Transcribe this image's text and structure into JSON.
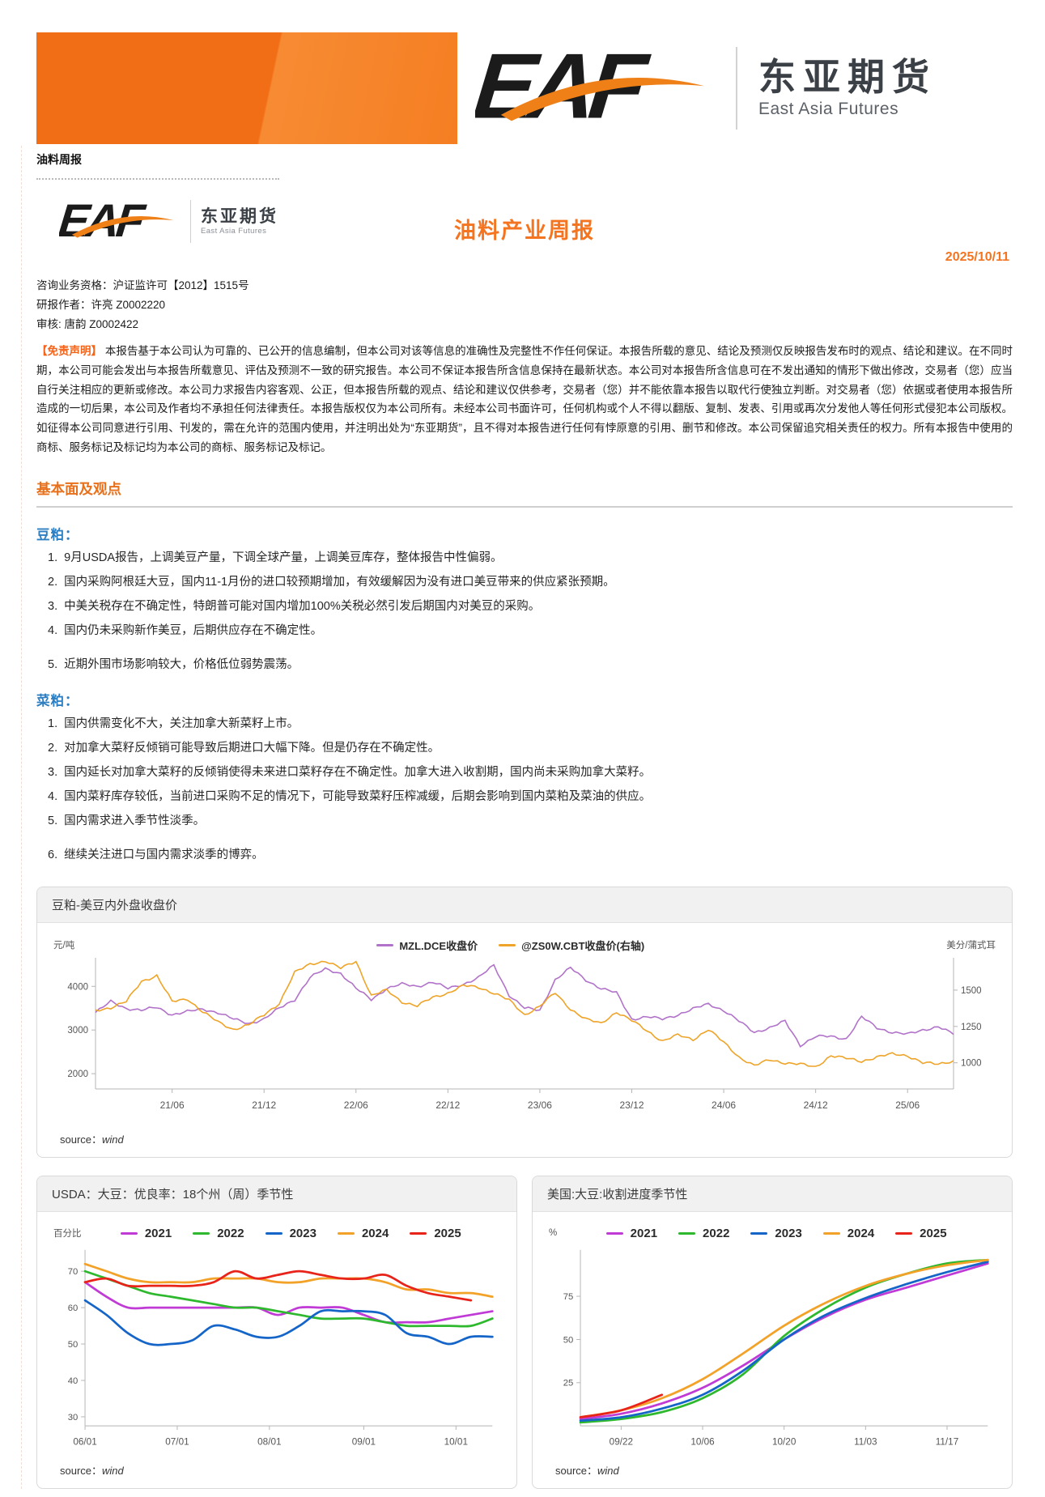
{
  "theme": {
    "brand_orange": "#F4741F",
    "heading_blue": "#2E7FC1",
    "banner_orange": "#F26E16"
  },
  "page": {
    "doc_label": "油料周报",
    "brand": {
      "logo_text": "EAF",
      "cn": "东亚期货",
      "en": "East Asia Futures"
    }
  },
  "report": {
    "title": "油料产业周报",
    "date": "2025/10/11",
    "qualification": "咨询业务资格：沪证监许可【2012】1515号",
    "author": "研报作者：许亮 Z0002220",
    "reviewer": "审核: 唐韵 Z0002422",
    "disclaimer_label": "【免责声明】",
    "disclaimer_text": "本报告基于本公司认为可靠的、已公开的信息编制，但本公司对该等信息的准确性及完整性不作任何保证。本报告所载的意见、结论及预测仅反映报告发布时的观点、结论和建议。在不同时期，本公司可能会发出与本报告所载意见、评估及预测不一致的研究报告。本公司不保证本报告所含信息保持在最新状态。本公司对本报告所含信息可在不发出通知的情形下做出修改，交易者（您）应当自行关注相应的更新或修改。本公司力求报告内容客观、公正，但本报告所载的观点、结论和建议仅供参考，交易者（您）并不能依靠本报告以取代行使独立判断。对交易者（您）依据或者使用本报告所造成的一切后果，本公司及作者均不承担任何法律责任。本报告版权仅为本公司所有。未经本公司书面许可，任何机构或个人不得以翻版、复制、发表、引用或再次分发他人等任何形式侵犯本公司版权。如征得本公司同意进行引用、刊发的，需在允许的范围内使用，并注明出处为“东亚期货”，且不得对本报告进行任何有悖原意的引用、删节和修改。本公司保留追究相关责任的权力。所有本报告中使用的商标、服务标记及标记均为本公司的商标、服务标记及标记。"
  },
  "sections": {
    "heading": "基本面及观点",
    "soybean_meal": {
      "title": "豆粕：",
      "items": [
        "9月USDA报告，上调美豆产量，下调全球产量，上调美豆库存，整体报告中性偏弱。",
        "国内采购阿根廷大豆，国内11-1月份的进口较预期增加，有效缓解因为没有进口美豆带来的供应紧张预期。",
        "中美关税存在不确定性，特朗普可能对国内增加100%关税必然引发后期国内对美豆的采购。",
        "国内仍未采购新作美豆，后期供应存在不确定性。",
        "近期外围市场影响较大，价格低位弱势震荡。"
      ]
    },
    "rapeseed_meal": {
      "title": "菜粕：",
      "items": [
        "国内供需变化不大，关注加拿大新菜籽上市。",
        "对加拿大菜籽反倾销可能导致后期进口大幅下降。但是仍存在不确定性。",
        "国内延长对加拿大菜籽的反倾销使得未来进口菜籽存在不确定性。加拿大进入收割期，国内尚未采购加拿大菜籽。",
        "国内菜籽库存较低，当前进口采购不足的情况下，可能导致菜籽压榨减缓，后期会影响到国内菜粕及菜油的供应。",
        "国内需求进入季节性淡季。",
        "继续关注进口与国内需求淡季的博弈。"
      ]
    }
  },
  "charts": [
    {
      "title": "豆粕-美豆内外盘收盘价",
      "source_label": "source：",
      "source": "wind",
      "chart_data": {
        "type": "line",
        "x_count": 57,
        "x_start": "2021-01",
        "x_step": "month",
        "x_ticks": [
          {
            "pos": 5,
            "label": "21/06"
          },
          {
            "pos": 11,
            "label": "21/12"
          },
          {
            "pos": 17,
            "label": "22/06"
          },
          {
            "pos": 23,
            "label": "22/12"
          },
          {
            "pos": 29,
            "label": "23/06"
          },
          {
            "pos": 35,
            "label": "23/12"
          },
          {
            "pos": 41,
            "label": "24/06"
          },
          {
            "pos": 47,
            "label": "24/12"
          },
          {
            "pos": 53,
            "label": "25/06"
          }
        ],
        "left_axis": {
          "label": "元/吨",
          "ticks": [
            2000,
            3000,
            4000
          ],
          "range": [
            1650,
            4580
          ]
        },
        "right_axis": {
          "label": "美分/蒲式耳",
          "ticks": [
            1000,
            1250,
            1500
          ],
          "range": [
            820,
            1700
          ]
        },
        "legend_position": "top-center",
        "series": [
          {
            "name": "MZL.DCE收盘价",
            "color": "#B173C9",
            "axis": "left",
            "values": [
              3400,
              3650,
              3500,
              3450,
              3520,
              3350,
              3420,
              3480,
              3400,
              3250,
              3150,
              3250,
              3500,
              3700,
              4200,
              4400,
              4300,
              3950,
              3700,
              3950,
              4050,
              4000,
              4100,
              3950,
              4050,
              4200,
              4480,
              3800,
              3500,
              3450,
              4150,
              4420,
              4150,
              3950,
              3850,
              3250,
              3300,
              3250,
              3350,
              3480,
              3600,
              3450,
              3200,
              2950,
              3050,
              3200,
              2650,
              2850,
              2850,
              2800,
              3300,
              3050,
              2950,
              2900,
              3000,
              3080,
              2900
            ]
          },
          {
            "name": "@ZS0W.CBT收盘价(右轴)",
            "color": "#EEA428",
            "axis": "right",
            "values": [
              1360,
              1380,
              1420,
              1560,
              1600,
              1420,
              1440,
              1350,
              1280,
              1230,
              1260,
              1330,
              1410,
              1620,
              1680,
              1700,
              1650,
              1700,
              1460,
              1500,
              1420,
              1390,
              1450,
              1480,
              1530,
              1520,
              1480,
              1430,
              1330,
              1390,
              1480,
              1370,
              1300,
              1270,
              1350,
              1290,
              1220,
              1150,
              1190,
              1160,
              1230,
              1140,
              1040,
              980,
              1020,
              1000,
              990,
              970,
              1050,
              1030,
              1010,
              1040,
              1060,
              1050,
              1000,
              990,
              1015
            ]
          }
        ]
      }
    },
    {
      "title": "USDA：大豆：优良率：18个州（周）季节性",
      "source_label": "source：",
      "source": "wind",
      "chart_data": {
        "type": "line",
        "x_count": 20,
        "x": [
          "06/01",
          "06/08",
          "06/15",
          "06/22",
          "06/29",
          "07/06",
          "07/13",
          "07/20",
          "07/27",
          "08/03",
          "08/10",
          "08/17",
          "08/24",
          "08/31",
          "09/07",
          "09/14",
          "09/21",
          "09/28",
          "10/05",
          "10/12"
        ],
        "x_ticks": [
          {
            "pos": 0,
            "label": "06/01"
          },
          {
            "pos": 4.3,
            "label": "07/01"
          },
          {
            "pos": 8.6,
            "label": "08/01"
          },
          {
            "pos": 13,
            "label": "09/01"
          },
          {
            "pos": 17.3,
            "label": "10/01"
          }
        ],
        "left_axis": {
          "label": "百分比",
          "ticks": [
            30,
            40,
            50,
            60,
            70
          ],
          "range": [
            27.5,
            75
          ]
        },
        "legend_position": "top-center",
        "series": [
          {
            "name": "2021",
            "color": "#C03AD6",
            "axis": "left",
            "values": [
              67,
              63,
              60,
              60,
              60,
              60,
              60,
              60,
              60,
              58,
              60,
              60,
              60,
              58,
              56,
              56,
              56,
              57,
              58,
              59
            ]
          },
          {
            "name": "2022",
            "color": "#2EB82E",
            "axis": "left",
            "values": [
              70,
              68,
              66,
              64,
              63,
              62,
              61,
              60,
              60,
              59,
              58,
              57,
              57,
              57,
              56,
              55,
              55,
              55,
              55,
              57
            ]
          },
          {
            "name": "2023",
            "color": "#1565C8",
            "axis": "left",
            "values": [
              62,
              58,
              53,
              50,
              50,
              51,
              55,
              54,
              52,
              52,
              55,
              59,
              59,
              59,
              58,
              53,
              52,
              50,
              52,
              52
            ]
          },
          {
            "name": "2024",
            "color": "#F2A229",
            "axis": "left",
            "values": [
              72,
              70,
              68,
              67,
              67,
              67,
              68,
              68,
              68,
              67,
              67,
              68,
              68,
              68,
              67,
              65,
              65,
              64,
              64,
              63
            ]
          },
          {
            "name": "2025",
            "color": "#E8231A",
            "axis": "left",
            "values": [
              67,
              68,
              66,
              66,
              66,
              66,
              67,
              70,
              68,
              69,
              70,
              69,
              68,
              68,
              69,
              66,
              64,
              63,
              62,
              null
            ]
          }
        ]
      }
    },
    {
      "title": "美国:大豆:收割进度季节性",
      "source_label": "source：",
      "source": "wind",
      "chart_data": {
        "type": "line",
        "x_count": 11,
        "x": [
          "09/15",
          "09/22",
          "09/29",
          "10/06",
          "10/13",
          "10/20",
          "10/27",
          "11/03",
          "11/10",
          "11/17",
          "11/24"
        ],
        "x_ticks": [
          {
            "pos": 1,
            "label": "09/22"
          },
          {
            "pos": 3,
            "label": "10/06"
          },
          {
            "pos": 5,
            "label": "10/20"
          },
          {
            "pos": 7,
            "label": "11/03"
          },
          {
            "pos": 9,
            "label": "11/17"
          }
        ],
        "left_axis": {
          "label": "%",
          "ticks": [
            25,
            50,
            75
          ],
          "range": [
            0,
            100
          ]
        },
        "legend_position": "top-center",
        "series": [
          {
            "name": "2021",
            "color": "#C03AD6",
            "axis": "left",
            "values": [
              4,
              7,
              13,
              22,
              35,
              50,
              63,
              73,
              80,
              87,
              94
            ]
          },
          {
            "name": "2022",
            "color": "#2EB82E",
            "axis": "left",
            "values": [
              2,
              4,
              8,
              16,
              30,
              52,
              68,
              80,
              88,
              94,
              96
            ]
          },
          {
            "name": "2023",
            "color": "#1565C8",
            "axis": "left",
            "values": [
              3,
              5,
              10,
              18,
              32,
              50,
              64,
              74,
              82,
              89,
              95
            ]
          },
          {
            "name": "2024",
            "color": "#F2A229",
            "axis": "left",
            "values": [
              5,
              9,
              16,
              27,
              42,
              58,
              71,
              81,
              88,
              93,
              96
            ]
          },
          {
            "name": "2025",
            "color": "#E8231A",
            "axis": "left",
            "values": [
              5,
              9,
              18,
              null,
              null,
              null,
              null,
              null,
              null,
              null,
              null
            ]
          }
        ]
      }
    }
  ]
}
